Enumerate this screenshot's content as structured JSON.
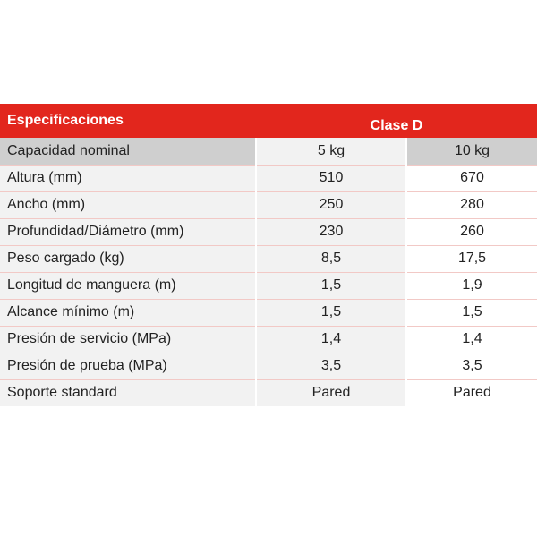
{
  "table": {
    "header": {
      "label": "Especificaciones",
      "class": "Clase D"
    },
    "rows": [
      {
        "label": "Capacidad nominal",
        "a": "5 kg",
        "b": "10 kg"
      },
      {
        "label": "Altura (mm)",
        "a": "510",
        "b": "670"
      },
      {
        "label": "Ancho (mm)",
        "a": "250",
        "b": "280"
      },
      {
        "label": "Profundidad/Diámetro (mm)",
        "a": "230",
        "b": "260"
      },
      {
        "label": "Peso cargado (kg)",
        "a": "8,5",
        "b": "17,5"
      },
      {
        "label": "Longitud de manguera (m)",
        "a": "1,5",
        "b": "1,9"
      },
      {
        "label": "Alcance mínimo (m)",
        "a": "1,5",
        "b": "1,5"
      },
      {
        "label": "Presión de servicio (MPa)",
        "a": "1,4",
        "b": "1,4"
      },
      {
        "label": "Presión de prueba (MPa)",
        "a": "3,5",
        "b": "3,5"
      },
      {
        "label": "Soporte standard",
        "a": "Pared",
        "b": "Pared"
      }
    ]
  },
  "colors": {
    "header_red": "#e2261d",
    "row_gray": "#f2f2f2",
    "first_row_gray": "#cfcfcf"
  }
}
